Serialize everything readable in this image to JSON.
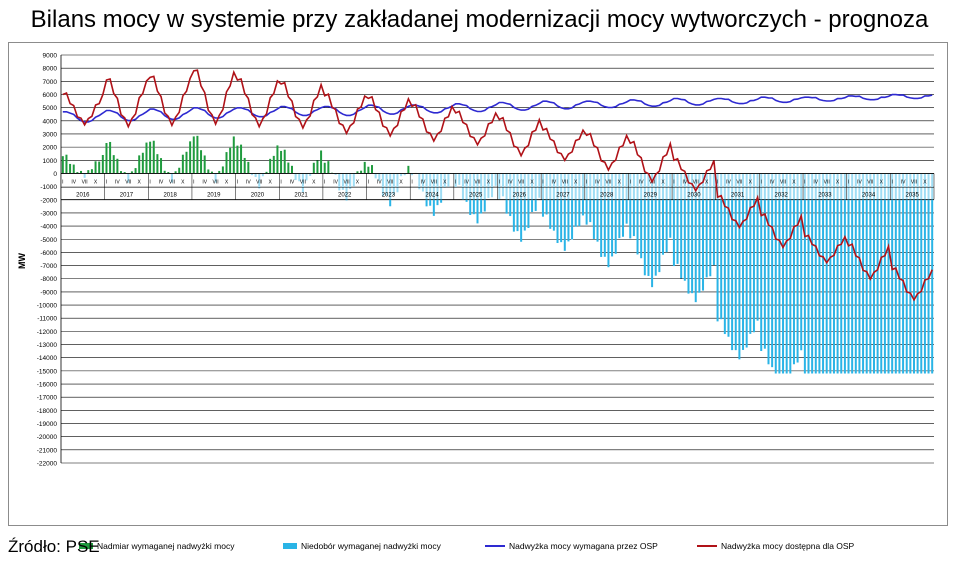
{
  "title": "Bilans mocy w systemie przy zakładanej modernizacji mocy wytworczych - prognoza",
  "source": "Źródło: PSE",
  "colors": {
    "surplus_bar": "#1f9b3e",
    "deficit_bar": "#2ab4e6",
    "required_line": "#2e2ad1",
    "available_line": "#b01218",
    "grid": "#000000"
  },
  "chart_data": {
    "type": "bar+line",
    "ylabel": "MW",
    "ylim": [
      -22000,
      9000
    ],
    "y_ticks": [
      9000,
      8000,
      7000,
      6000,
      5000,
      4000,
      3000,
      2000,
      1000,
      0,
      -1000,
      -2000,
      -3000,
      -4000,
      -5000,
      -6000,
      -7000,
      -8000,
      -9000,
      -10000,
      -11000,
      -12000,
      -13000,
      -14000,
      -15000,
      -16000,
      -17000,
      -18000,
      -19000,
      -20000,
      -21000,
      -22000
    ],
    "years": [
      "2016",
      "2017",
      "2018",
      "2019",
      "2020",
      "2021",
      "2022",
      "2023",
      "2024",
      "2025",
      "2026",
      "2027",
      "2028",
      "2029",
      "2030",
      "2031",
      "2032",
      "2033",
      "2034",
      "2035"
    ],
    "month_labels": [
      "I",
      "IV",
      "VII",
      "X"
    ],
    "legend": [
      {
        "label": "Nadmiar wymaganej nadwyżki mocy",
        "kind": "bar",
        "color": "#1f9b3e"
      },
      {
        "label": "Niedobór wymaganej nadwyżki mocy",
        "kind": "bar",
        "color": "#2ab4e6"
      },
      {
        "label": "Nadwyżka mocy wymagana przez OSP",
        "kind": "line",
        "color": "#2e2ad1"
      },
      {
        "label": "Nadwyżka mocy dostępna dla OSP",
        "kind": "line",
        "color": "#b01218"
      }
    ],
    "series": [
      {
        "name": "Nadwyżka mocy wymagana przez OSP",
        "type": "line",
        "yearly_low": [
          3900,
          4000,
          4100,
          4200,
          4300,
          4400,
          4400,
          4500,
          4600,
          4700,
          4800,
          4900,
          5000,
          5100,
          5200,
          5300,
          5400,
          5500,
          5600,
          5700
        ],
        "yearly_high": [
          4700,
          4800,
          4900,
          5000,
          5000,
          5100,
          5100,
          5200,
          5200,
          5300,
          5400,
          5500,
          5500,
          5600,
          5700,
          5700,
          5800,
          5800,
          5900,
          6000
        ]
      },
      {
        "name": "Nadwyżka mocy dostępna dla OSP",
        "type": "line",
        "yearly_peak": [
          6000,
          7100,
          7300,
          7800,
          7100,
          6800,
          5900,
          5700,
          5100,
          4600,
          4100,
          3300,
          2900,
          2300,
          1000,
          -1800,
          -3200,
          -4800,
          -5500,
          -7300
        ],
        "yearly_trough": [
          3900,
          3800,
          3900,
          4000,
          3800,
          3700,
          3300,
          3100,
          2700,
          2400,
          1600,
          1200,
          500,
          -400,
          -1100,
          -3900,
          -5400,
          -6600,
          -7800,
          -9400
        ]
      },
      {
        "name": "Nadmiar wymaganej nadwyżki mocy",
        "type": "bar",
        "note": "monthly positive difference between available and required surplus"
      },
      {
        "name": "Niedobór wymaganej nadwyżki mocy",
        "type": "bar",
        "note": "monthly negative difference between available and required surplus",
        "min_value": -15200
      }
    ]
  }
}
